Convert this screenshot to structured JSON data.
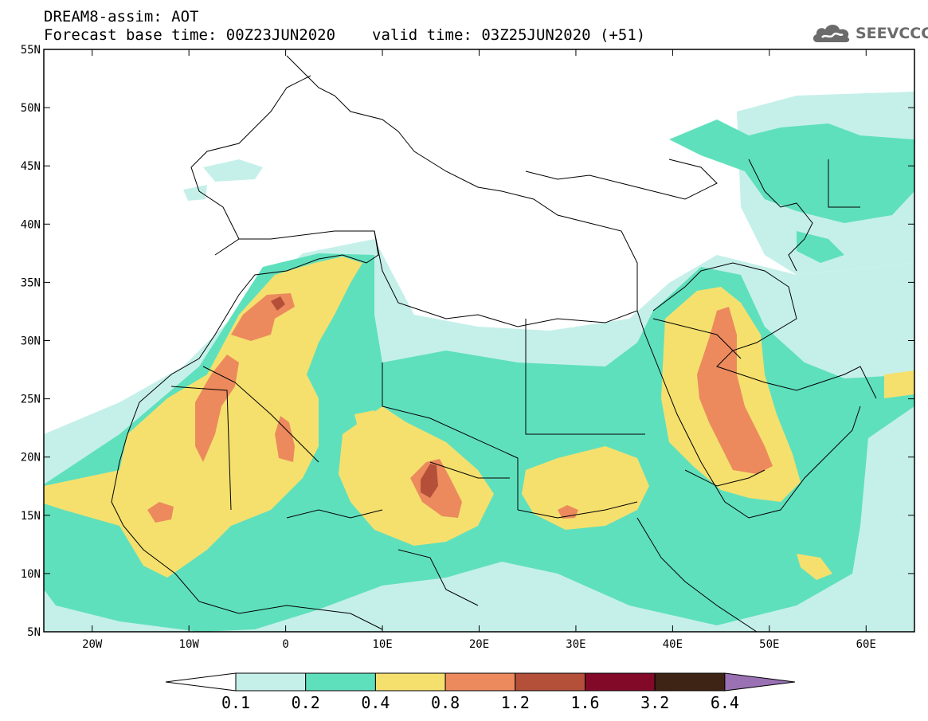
{
  "title": {
    "line1": "DREAM8-assim: AOT",
    "base_time": "Forecast base time: 00Z23JUN2020",
    "valid_time": "valid time: 03Z25JUN2020 (+51)"
  },
  "logo": {
    "text": "SEEVCCC",
    "icon": "cloud-icon"
  },
  "map": {
    "lon_range": [
      -25,
      65
    ],
    "lat_range": [
      5,
      55
    ],
    "lat_ticks": [
      {
        "value": 55,
        "label": "55N"
      },
      {
        "value": 50,
        "label": "50N"
      },
      {
        "value": 45,
        "label": "45N"
      },
      {
        "value": 40,
        "label": "40N"
      },
      {
        "value": 35,
        "label": "35N"
      },
      {
        "value": 30,
        "label": "30N"
      },
      {
        "value": 25,
        "label": "25N"
      },
      {
        "value": 20,
        "label": "20N"
      },
      {
        "value": 15,
        "label": "15N"
      },
      {
        "value": 10,
        "label": "10N"
      },
      {
        "value": 5,
        "label": "5N"
      }
    ],
    "lon_ticks": [
      {
        "value": -20,
        "label": "20W"
      },
      {
        "value": -10,
        "label": "10W"
      },
      {
        "value": 0,
        "label": "0"
      },
      {
        "value": 10,
        "label": "10E"
      },
      {
        "value": 20,
        "label": "20E"
      },
      {
        "value": 30,
        "label": "30E"
      },
      {
        "value": 40,
        "label": "40E"
      },
      {
        "value": 50,
        "label": "50E"
      },
      {
        "value": 60,
        "label": "60E"
      }
    ]
  },
  "colorbar": {
    "levels": [
      "0.1",
      "0.2",
      "0.4",
      "0.8",
      "1.2",
      "1.6",
      "3.2",
      "6.4"
    ],
    "colors": [
      "#ffffff",
      "#c5f0ea",
      "#5fe0bc",
      "#f5e06e",
      "#ec8a5e",
      "#b4503a",
      "#820a28",
      "#3e2414",
      "#9a72b4"
    ]
  },
  "colors": {
    "c1": "#c5f0ea",
    "c2": "#5fe0bc",
    "c3": "#f5e06e",
    "c4": "#ec8a5e",
    "c5": "#b4503a"
  }
}
